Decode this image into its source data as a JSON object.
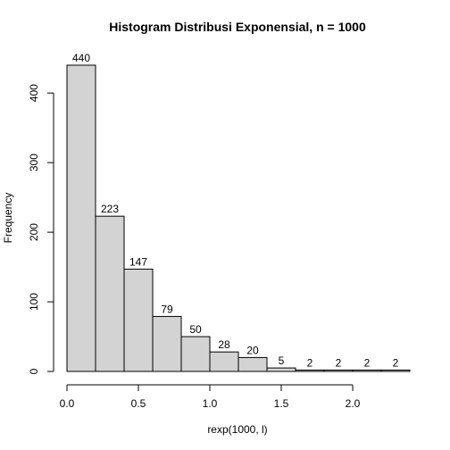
{
  "chart_data": {
    "type": "bar",
    "title": "Histogram Distribusi Exponensial, n = 1000",
    "xlabel": "rexp(1000, l)",
    "ylabel": "Frequency",
    "bins": [
      {
        "from": 0.0,
        "to": 0.2,
        "count": 440
      },
      {
        "from": 0.2,
        "to": 0.4,
        "count": 223
      },
      {
        "from": 0.4,
        "to": 0.6,
        "count": 147
      },
      {
        "from": 0.6,
        "to": 0.8,
        "count": 79
      },
      {
        "from": 0.8,
        "to": 1.0,
        "count": 50
      },
      {
        "from": 1.0,
        "to": 1.2,
        "count": 28
      },
      {
        "from": 1.2,
        "to": 1.4,
        "count": 20
      },
      {
        "from": 1.4,
        "to": 1.6,
        "count": 5
      },
      {
        "from": 1.6,
        "to": 1.8,
        "count": 2
      },
      {
        "from": 1.8,
        "to": 2.0,
        "count": 2
      },
      {
        "from": 2.0,
        "to": 2.2,
        "count": 2
      },
      {
        "from": 2.2,
        "to": 2.4,
        "count": 2
      }
    ],
    "xlim": [
      0,
      2.4
    ],
    "ylim": [
      0,
      440
    ],
    "x_ticks": [
      {
        "value": 0.0,
        "label": "0.0"
      },
      {
        "value": 0.5,
        "label": "0.5"
      },
      {
        "value": 1.0,
        "label": "1.0"
      },
      {
        "value": 1.5,
        "label": "1.5"
      },
      {
        "value": 2.0,
        "label": "2.0"
      }
    ],
    "y_ticks": [
      {
        "value": 0,
        "label": "0"
      },
      {
        "value": 100,
        "label": "100"
      },
      {
        "value": 200,
        "label": "200"
      },
      {
        "value": 300,
        "label": "300"
      },
      {
        "value": 400,
        "label": "400"
      }
    ],
    "grid": false,
    "bar_fill": "#d3d3d3",
    "bar_stroke": "#000000"
  }
}
